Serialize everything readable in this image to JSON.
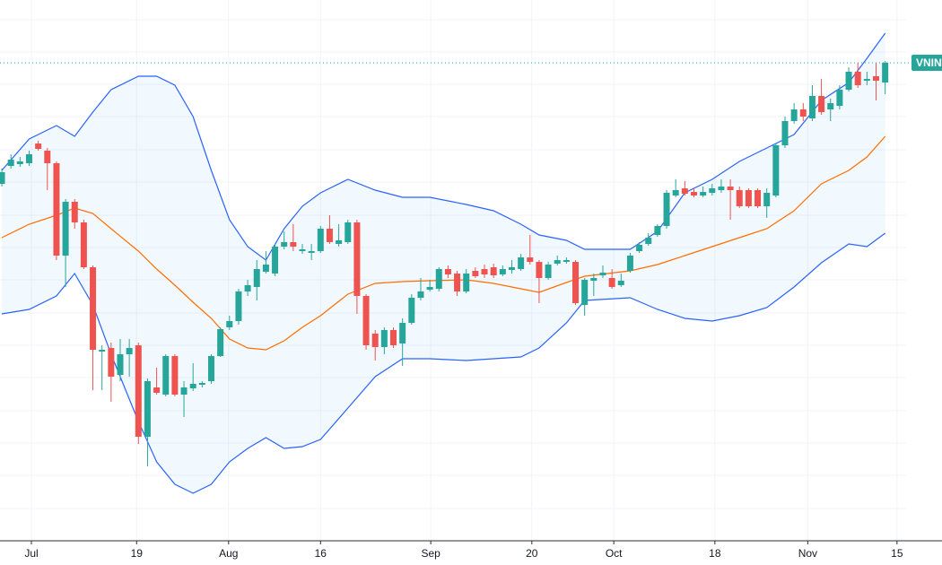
{
  "chart_data": {
    "type": "candlestick",
    "xlim": [
      -0.2,
      99.3
    ],
    "ylim": [
      0,
      600
    ],
    "grid": true,
    "yticks": [
      33,
      70,
      106,
      142,
      179,
      215,
      251,
      288,
      324,
      360,
      397,
      433,
      470,
      506,
      542,
      578
    ],
    "xticks": [
      {
        "value": 3.25,
        "label": "Jul"
      },
      {
        "value": 14.8,
        "label": "19"
      },
      {
        "value": 24.9,
        "label": "Aug"
      },
      {
        "value": 35.0,
        "label": "16"
      },
      {
        "value": 47.1,
        "label": "Sep"
      },
      {
        "value": 58.2,
        "label": "20"
      },
      {
        "value": 67.2,
        "label": "Oct"
      },
      {
        "value": 78.3,
        "label": "18"
      },
      {
        "value": 88.5,
        "label": "Nov"
      },
      {
        "value": 98.3,
        "label": "15"
      }
    ],
    "up_color": "#26a69a",
    "down_color": "#ef5350",
    "open": [
      395,
      415,
      417,
      418,
      440,
      432,
      418,
      315,
      375,
      352,
      302,
      208,
      212,
      182,
      205,
      215,
      113,
      168,
      160,
      203,
      160,
      167,
      171,
      175,
      203,
      235,
      242,
      275,
      280,
      297,
      295,
      325,
      330,
      320,
      318,
      320,
      345,
      328,
      330,
      352,
      270,
      228,
      213,
      232,
      217,
      240,
      268,
      277,
      278,
      300,
      295,
      275,
      298,
      300,
      302,
      294,
      299,
      300,
      313,
      308,
      290,
      306,
      308,
      308,
      260,
      287,
      293,
      290,
      282,
      298,
      320,
      328,
      338,
      348,
      382,
      390,
      386,
      382,
      385,
      388,
      392,
      388,
      388,
      388,
      370,
      382,
      438,
      465,
      478,
      468,
      493,
      478,
      482,
      500,
      520,
      510,
      515,
      508
    ],
    "high": [
      412,
      428,
      425,
      432,
      443,
      435,
      420,
      378,
      378,
      355,
      304,
      215,
      218,
      222,
      222,
      218,
      178,
      190,
      205,
      205,
      175,
      195,
      175,
      205,
      235,
      248,
      278,
      288,
      310,
      320,
      328,
      342,
      350,
      328,
      328,
      348,
      360,
      350,
      355,
      355,
      272,
      232,
      235,
      235,
      245,
      272,
      290,
      288,
      302,
      304,
      298,
      300,
      302,
      305,
      306,
      304,
      310,
      317,
      338,
      310,
      308,
      315,
      313,
      310,
      290,
      295,
      304,
      300,
      295,
      318,
      330,
      340,
      350,
      388,
      400,
      398,
      390,
      392,
      395,
      400,
      400,
      392,
      390,
      390,
      390,
      440,
      470,
      485,
      485,
      505,
      512,
      490,
      505,
      525,
      530,
      520,
      530,
      532
    ],
    "low": [
      392,
      412,
      414,
      415,
      432,
      388,
      310,
      280,
      345,
      300,
      165,
      165,
      152,
      175,
      180,
      105,
      80,
      160,
      158,
      158,
      135,
      164,
      168,
      172,
      202,
      232,
      238,
      270,
      265,
      295,
      292,
      322,
      320,
      317,
      310,
      318,
      328,
      325,
      328,
      250,
      210,
      198,
      205,
      212,
      192,
      238,
      265,
      275,
      275,
      290,
      270,
      273,
      290,
      290,
      290,
      292,
      295,
      298,
      305,
      262,
      288,
      304,
      306,
      260,
      248,
      270,
      290,
      278,
      280,
      296,
      318,
      326,
      336,
      345,
      380,
      382,
      380,
      380,
      382,
      385,
      355,
      368,
      368,
      368,
      357,
      380,
      435,
      462,
      465,
      465,
      472,
      465,
      478,
      498,
      502,
      505,
      488,
      495
    ],
    "close": [
      408,
      422,
      420,
      428,
      434,
      418,
      315,
      375,
      352,
      302,
      210,
      210,
      180,
      205,
      212,
      113,
      175,
      162,
      203,
      160,
      168,
      172,
      173,
      203,
      233,
      242,
      275,
      282,
      300,
      305,
      325,
      330,
      325,
      322,
      320,
      345,
      330,
      332,
      352,
      270,
      215,
      213,
      232,
      215,
      240,
      268,
      275,
      280,
      300,
      294,
      275,
      295,
      292,
      294,
      293,
      300,
      302,
      313,
      308,
      290,
      305,
      310,
      310,
      262,
      288,
      290,
      296,
      280,
      287,
      315,
      327,
      335,
      348,
      385,
      388,
      384,
      382,
      386,
      390,
      392,
      388,
      370,
      370,
      370,
      385,
      438,
      465,
      478,
      470,
      493,
      475,
      485,
      500,
      520,
      505,
      512,
      510,
      530
    ],
    "bands": {
      "x": [
        0,
        3,
        6,
        8,
        10,
        12,
        15,
        17,
        19,
        21,
        23,
        25,
        27,
        29,
        31,
        33,
        35,
        38,
        41,
        44,
        47,
        51,
        54,
        57,
        59,
        62,
        64,
        69,
        72,
        75,
        78,
        81,
        84,
        87,
        90,
        93,
        95,
        97
      ],
      "fill_color": "#2196f3",
      "upper": {
        "color": "#2962ff",
        "values": [
          410,
          445,
          460,
          448,
          475,
          500,
          515,
          515,
          505,
          470,
          410,
          355,
          325,
          310,
          345,
          370,
          385,
          400,
          388,
          380,
          380,
          372,
          365,
          350,
          338,
          332,
          322,
          322,
          342,
          385,
          400,
          420,
          435,
          450,
          488,
          508,
          535,
          563
        ]
      },
      "middle": {
        "color": "#ff6d00",
        "values": [
          335,
          350,
          360,
          368,
          362,
          345,
          320,
          300,
          282,
          263,
          245,
          222,
          212,
          210,
          220,
          235,
          248,
          272,
          284,
          286,
          287,
          288,
          284,
          278,
          274,
          285,
          292,
          298,
          305,
          315,
          325,
          335,
          345,
          365,
          395,
          410,
          425,
          448
        ]
      },
      "lower": {
        "color": "#2962ff",
        "values": [
          250,
          255,
          270,
          295,
          260,
          205,
          130,
          85,
          60,
          50,
          60,
          85,
          100,
          112,
          100,
          102,
          110,
          145,
          180,
          200,
          200,
          198,
          200,
          202,
          212,
          240,
          265,
          268,
          255,
          245,
          242,
          248,
          257,
          280,
          307,
          328,
          325,
          340
        ]
      }
    },
    "last_label": "VNIN",
    "last_label_color": "#26a69a"
  }
}
